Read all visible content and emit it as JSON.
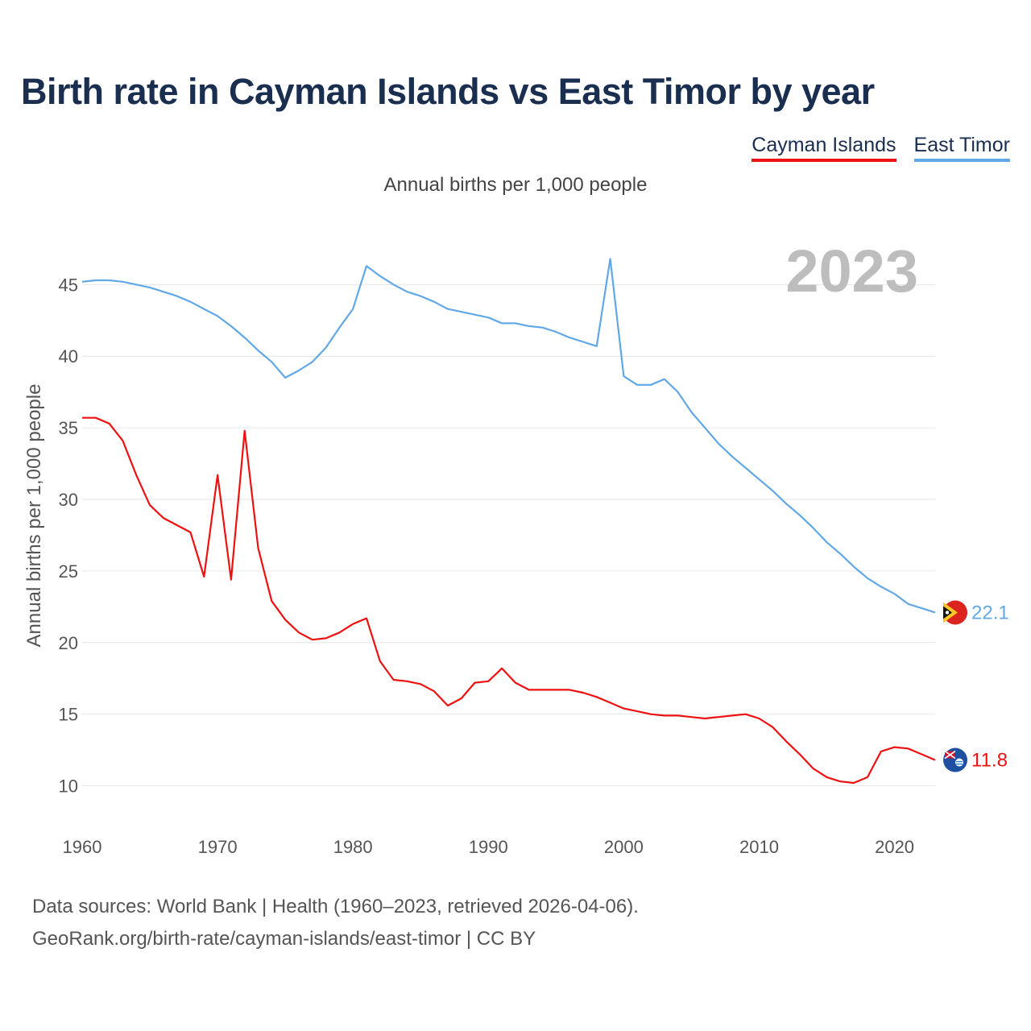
{
  "chart_data": {
    "type": "line",
    "title": "Birth rate in Cayman Islands vs East Timor by year",
    "subtitle": "Annual births per 1,000 people",
    "ylabel": "Annual births per 1,000 people",
    "xlabel": "",
    "year_overlay": "2023",
    "xlim": [
      1960,
      2023
    ],
    "ylim": [
      7.5,
      48
    ],
    "x_ticks": [
      "1960",
      "1970",
      "1980",
      "1990",
      "2000",
      "2010",
      "2020"
    ],
    "y_ticks": [
      "10",
      "15",
      "20",
      "25",
      "30",
      "35",
      "40",
      "45"
    ],
    "legend_position": "top-right",
    "x": [
      1960,
      1961,
      1962,
      1963,
      1964,
      1965,
      1966,
      1967,
      1968,
      1969,
      1970,
      1971,
      1972,
      1973,
      1974,
      1975,
      1976,
      1977,
      1978,
      1979,
      1980,
      1981,
      1982,
      1983,
      1984,
      1985,
      1986,
      1987,
      1988,
      1989,
      1990,
      1991,
      1992,
      1993,
      1994,
      1995,
      1996,
      1997,
      1998,
      1999,
      2000,
      2001,
      2002,
      2003,
      2004,
      2005,
      2006,
      2007,
      2008,
      2009,
      2010,
      2011,
      2012,
      2013,
      2014,
      2015,
      2016,
      2017,
      2018,
      2019,
      2020,
      2021,
      2022,
      2023
    ],
    "series": [
      {
        "name": "Cayman Islands",
        "color": "#ee1111",
        "end_label": "11.8",
        "flag_icon": "cayman-islands-flag-icon",
        "values": [
          35.7,
          35.7,
          35.3,
          34.1,
          31.7,
          29.6,
          28.7,
          28.2,
          27.7,
          24.6,
          31.7,
          24.4,
          34.8,
          26.6,
          22.9,
          21.6,
          20.7,
          20.2,
          20.3,
          20.7,
          21.3,
          21.7,
          18.7,
          17.4,
          17.3,
          17.1,
          16.6,
          15.6,
          16.1,
          17.2,
          17.3,
          18.2,
          17.2,
          16.7,
          16.7,
          16.7,
          16.7,
          16.5,
          16.2,
          15.8,
          15.4,
          15.2,
          15.0,
          14.9,
          14.9,
          14.8,
          14.7,
          14.8,
          14.9,
          15.0,
          14.7,
          14.1,
          13.1,
          12.2,
          11.2,
          10.6,
          10.3,
          10.2,
          10.6,
          12.4,
          12.7,
          12.6,
          12.2,
          11.8
        ]
      },
      {
        "name": "East Timor",
        "color": "#62a8e6",
        "end_label": "22.1",
        "flag_icon": "east-timor-flag-icon",
        "values": [
          45.2,
          45.3,
          45.3,
          45.2,
          45.0,
          44.8,
          44.5,
          44.2,
          43.8,
          43.3,
          42.8,
          42.1,
          41.3,
          40.4,
          39.6,
          38.5,
          39.0,
          39.6,
          40.6,
          42.0,
          43.3,
          46.3,
          45.6,
          45.0,
          44.5,
          44.2,
          43.8,
          43.3,
          43.1,
          42.9,
          42.7,
          42.3,
          42.3,
          42.1,
          42.0,
          41.7,
          41.3,
          41.0,
          40.7,
          46.8,
          38.6,
          38.0,
          38.0,
          38.4,
          37.5,
          36.1,
          35.0,
          33.9,
          33.0,
          32.2,
          31.4,
          30.6,
          29.7,
          28.9,
          28.0,
          27.0,
          26.2,
          25.3,
          24.5,
          23.9,
          23.4,
          22.7,
          22.4,
          22.1
        ]
      }
    ]
  },
  "footer": {
    "sources": "Data sources: World Bank | Health (1960–2023, retrieved 2026-04-06).",
    "attribution": "GeoRank.org/birth-rate/cayman-islands/east-timor | CC BY"
  }
}
